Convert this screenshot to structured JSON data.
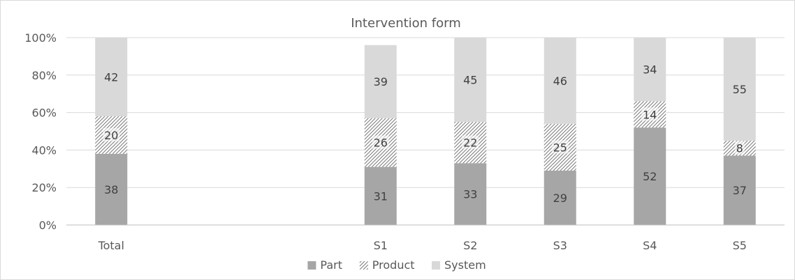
{
  "chart_data": {
    "type": "bar",
    "stacked": true,
    "percent_axis": true,
    "title": "Intervention form",
    "categories": [
      "Total",
      "",
      "",
      "S1",
      "S2",
      "S3",
      "S4",
      "S5"
    ],
    "series": [
      {
        "name": "Part",
        "values": [
          38,
          null,
          null,
          31,
          33,
          29,
          52,
          37
        ],
        "color": "#a6a6a6",
        "pattern": "solid"
      },
      {
        "name": "Product",
        "values": [
          20,
          null,
          null,
          26,
          22,
          25,
          14,
          8
        ],
        "color": "#ffffff",
        "pattern": "hatch"
      },
      {
        "name": "System",
        "values": [
          42,
          null,
          null,
          39,
          45,
          46,
          34,
          55
        ],
        "color": "#d9d9d9",
        "pattern": "solid"
      }
    ],
    "yticks": [
      "0%",
      "20%",
      "40%",
      "60%",
      "80%",
      "100%"
    ],
    "ylim": [
      0,
      100
    ],
    "grid": true,
    "legend_position": "bottom"
  }
}
